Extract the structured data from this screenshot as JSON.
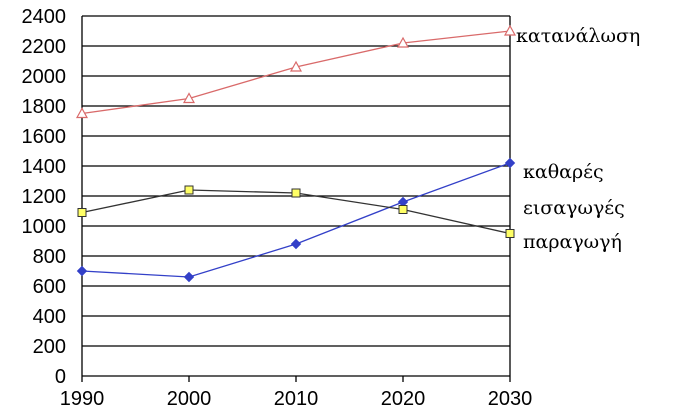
{
  "chart_data": {
    "type": "line",
    "x": [
      1990,
      2000,
      2010,
      2020,
      2030
    ],
    "xlim": [
      1990,
      2030
    ],
    "ylim": [
      0,
      2400
    ],
    "yticks": [
      0,
      200,
      400,
      600,
      800,
      1000,
      1200,
      1400,
      1600,
      1800,
      2000,
      2200,
      2400
    ],
    "xticks": [
      1990,
      2000,
      2010,
      2020,
      2030
    ],
    "grid": "horizontal",
    "series": [
      {
        "name": "κατανάλωση",
        "values": [
          1750,
          1850,
          2060,
          2220,
          2300
        ],
        "color": "#d96a6a",
        "marker": "triangle-open"
      },
      {
        "name": "καθαρές εισαγωγές",
        "values": [
          700,
          660,
          880,
          1160,
          1420
        ],
        "color": "#3340c8",
        "marker": "diamond-filled"
      },
      {
        "name": "παραγωγή",
        "values": [
          1090,
          1240,
          1220,
          1110,
          950
        ],
        "color": "#333333",
        "marker": "square-yellow"
      }
    ],
    "labels": {
      "consumption": "κατανάλωση",
      "imports_line1": "καθαρές",
      "imports_line2": "εισαγωγές",
      "production": "παραγωγή"
    }
  }
}
